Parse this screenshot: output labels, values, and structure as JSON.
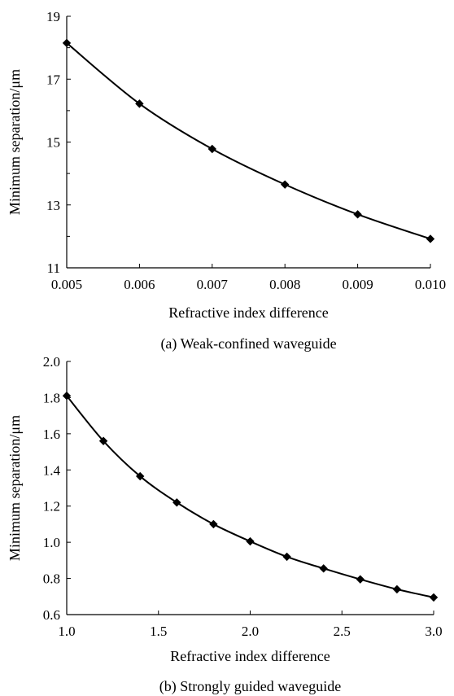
{
  "chart_data": [
    {
      "type": "line",
      "caption": "(a) Weak-confined waveguide",
      "xlabel": "Refractive index difference",
      "ylabel": "Minimum separation/μm",
      "xlim": [
        0.005,
        0.01
      ],
      "ylim": [
        11,
        19
      ],
      "xticks": [
        0.005,
        0.006,
        0.007,
        0.008,
        0.009,
        0.01
      ],
      "xtick_labels": [
        "0.005",
        "0.006",
        "0.007",
        "0.008",
        "0.009",
        "0.010"
      ],
      "yticks": [
        11,
        13,
        15,
        17,
        19
      ],
      "ytick_labels": [
        "11",
        "13",
        "15",
        "17",
        "19"
      ],
      "y_minor_ticks": [
        12,
        14,
        16,
        18
      ],
      "grid": false,
      "marker": "diamond",
      "x": [
        0.005,
        0.006,
        0.007,
        0.008,
        0.009,
        0.01
      ],
      "y": [
        18.15,
        16.22,
        14.78,
        13.65,
        12.7,
        11.92
      ]
    },
    {
      "type": "line",
      "caption": "(b) Strongly guided waveguide",
      "xlabel": "Refractive index difference",
      "ylabel": "Minimum separation/μm",
      "xlim": [
        1.0,
        3.0
      ],
      "ylim": [
        0.6,
        2.0
      ],
      "xticks": [
        1.0,
        1.5,
        2.0,
        2.5,
        3.0
      ],
      "xtick_labels": [
        "1.0",
        "1.5",
        "2.0",
        "2.5",
        "3.0"
      ],
      "yticks": [
        0.6,
        0.8,
        1.0,
        1.2,
        1.4,
        1.6,
        1.8,
        2.0
      ],
      "ytick_labels": [
        "0.6",
        "0.8",
        "1.0",
        "1.2",
        "1.4",
        "1.6",
        "1.8",
        "2.0"
      ],
      "grid": false,
      "marker": "diamond",
      "x": [
        1.0,
        1.2,
        1.4,
        1.6,
        1.8,
        2.0,
        2.2,
        2.4,
        2.6,
        2.8,
        3.0
      ],
      "y": [
        1.81,
        1.56,
        1.365,
        1.22,
        1.1,
        1.005,
        0.92,
        0.855,
        0.795,
        0.74,
        0.695
      ]
    }
  ]
}
